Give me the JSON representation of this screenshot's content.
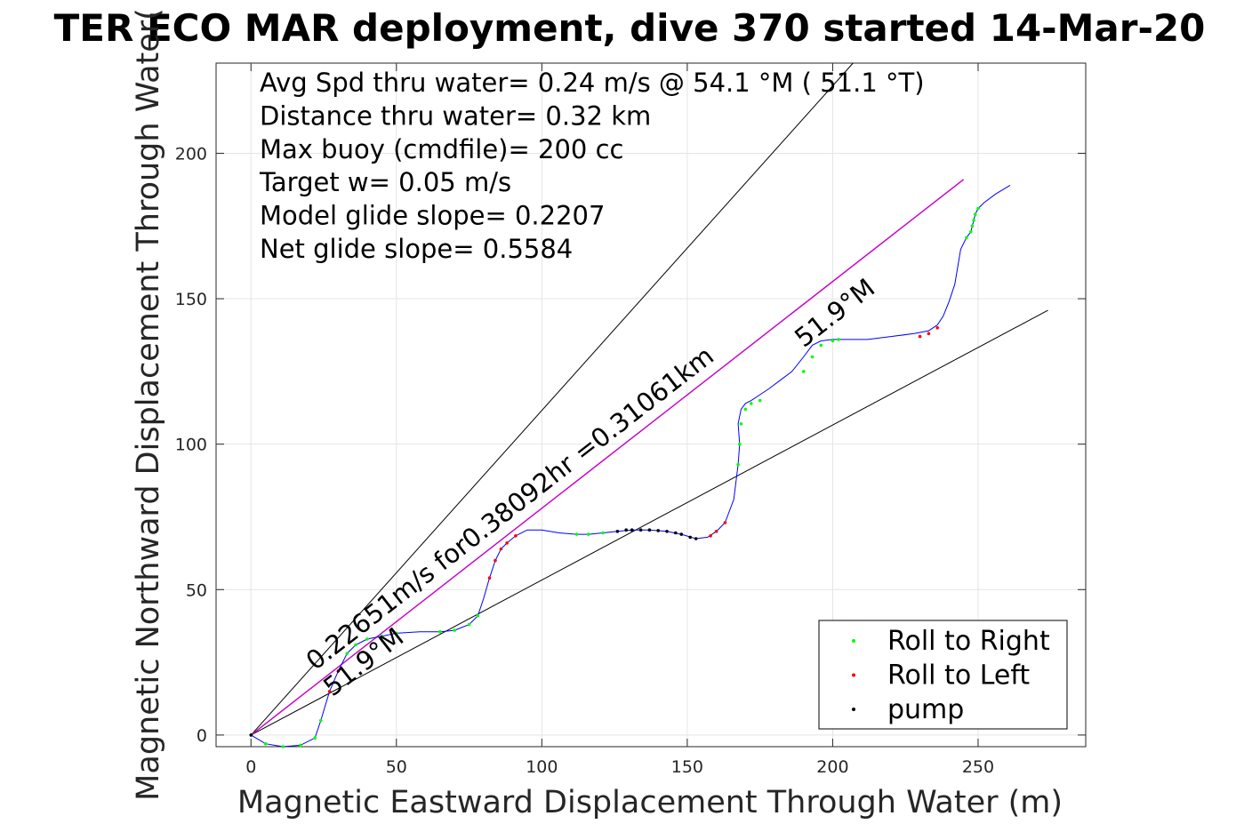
{
  "chart_data": {
    "type": "line",
    "title": "TER ECO MAR deployment, dive 370 started 14-Mar-20",
    "xlabel": "Magnetic Eastward Displacement Through Water (m)",
    "ylabel": "Magnetic Northward Displacement Through Water(",
    "xlim": [
      -12,
      287
    ],
    "ylim": [
      -4,
      231
    ],
    "xticks": [
      0,
      50,
      100,
      150,
      200,
      250
    ],
    "yticks": [
      0,
      50,
      100,
      150,
      200
    ],
    "grid": true,
    "info_lines": [
      "Avg Spd thru water=  0.24 m/s @  54.1 °M ( 51.1 °T)",
      "Distance thru water=  0.32 km",
      "Max buoy (cmdfile)= 200 cc",
      "Target w= 0.05 m/s",
      "Model glide slope= 0.2207",
      "Net glide slope= 0.5584"
    ],
    "annotations": [
      {
        "text": "0.22651m/s for0.38092hr =0.31061km",
        "x": 22,
        "y": 22,
        "angle_deg": 37.9
      },
      {
        "text": "51.9°M",
        "x": 28,
        "y": 13,
        "angle_deg": 37.9
      },
      {
        "text": "51.9°M",
        "x": 190,
        "y": 133,
        "angle_deg": 37.9
      }
    ],
    "legend": {
      "placement": "bottom-right",
      "entries": [
        {
          "label": "Roll to Right",
          "color": "#00ff00"
        },
        {
          "label": "Roll to Left",
          "color": "#ff0000"
        },
        {
          "label": "pump",
          "color": "#000000"
        }
      ]
    },
    "series": [
      {
        "kind": "reference",
        "color": "#000000",
        "x": [
          0,
          207
        ],
        "y": [
          0,
          231
        ]
      },
      {
        "kind": "reference",
        "color": "#000000",
        "x": [
          0,
          274
        ],
        "y": [
          0,
          146
        ]
      },
      {
        "kind": "reference",
        "color": "#000000",
        "x": [
          0,
          245
        ],
        "y": [
          0,
          191
        ]
      },
      {
        "kind": "model",
        "color": "#cc00cc",
        "x": [
          0,
          245
        ],
        "y": [
          0,
          191
        ]
      },
      {
        "kind": "track",
        "color": "#0000ff",
        "x": [
          0,
          5,
          11,
          17,
          22,
          24,
          27,
          30,
          33,
          36,
          40,
          45,
          50,
          58,
          65,
          70,
          75,
          78,
          80,
          82,
          84,
          86,
          88,
          91,
          95,
          100,
          106,
          112,
          116,
          121,
          126,
          131,
          137,
          143,
          148,
          153,
          157,
          160,
          163,
          166,
          167.5,
          168,
          167.5,
          168.5,
          170,
          172,
          175,
          178,
          182,
          186,
          190,
          193,
          196,
          200,
          205,
          212,
          220,
          228,
          233,
          236,
          238,
          240,
          242,
          244,
          246,
          247.5,
          248,
          248.5,
          249,
          250,
          252,
          256,
          261
        ],
        "y": [
          0,
          -3,
          -4,
          -3.5,
          -1,
          5,
          15,
          22,
          28,
          31,
          33,
          34,
          35,
          35.5,
          35.5,
          36,
          38,
          41,
          47,
          54,
          60,
          64,
          66,
          68.5,
          70.5,
          70.5,
          69.5,
          69,
          69,
          69.5,
          70,
          70.5,
          70.5,
          70,
          69,
          67.5,
          68,
          70,
          73,
          81,
          93,
          100,
          107,
          112,
          114,
          115,
          117,
          119,
          122,
          125,
          130,
          134,
          135.5,
          136,
          136,
          136,
          137,
          138,
          139,
          141,
          144,
          149,
          155,
          167,
          171,
          173,
          175,
          177,
          179,
          181,
          183,
          186,
          189
        ]
      },
      {
        "kind": "roll_right",
        "color": "#00ff00",
        "x": [
          0,
          5,
          11,
          17,
          22,
          24,
          33,
          36,
          40,
          45,
          50,
          65,
          70,
          75,
          78,
          112,
          116,
          121,
          167.5,
          168,
          168.5,
          170,
          172,
          175,
          190,
          193,
          196,
          200,
          202,
          246,
          247.5,
          248,
          248.5,
          249,
          250
        ],
        "y": [
          0,
          -3,
          -4,
          -3.5,
          -1,
          5,
          28,
          31,
          33,
          34,
          35,
          35.5,
          36,
          38,
          41,
          69,
          69,
          69.5,
          93,
          100,
          107,
          112,
          114,
          115,
          125,
          130,
          134,
          135.5,
          136,
          171,
          173,
          175,
          177,
          179,
          181
        ]
      },
      {
        "kind": "roll_left",
        "color": "#ff0000",
        "x": [
          27,
          30,
          82,
          84,
          86,
          88,
          91,
          158,
          160,
          163,
          230,
          233,
          236
        ],
        "y": [
          15,
          22,
          54,
          60,
          64,
          66,
          68.5,
          68.5,
          70,
          73,
          137,
          138,
          140
        ]
      },
      {
        "kind": "pump",
        "color": "#000000",
        "x": [
          0,
          126,
          129,
          131,
          134,
          137,
          140,
          143,
          146,
          148,
          151,
          153
        ],
        "y": [
          0,
          70,
          70.5,
          70.5,
          70.5,
          70.5,
          70.3,
          70,
          69.5,
          69,
          68,
          67.5
        ]
      }
    ]
  }
}
